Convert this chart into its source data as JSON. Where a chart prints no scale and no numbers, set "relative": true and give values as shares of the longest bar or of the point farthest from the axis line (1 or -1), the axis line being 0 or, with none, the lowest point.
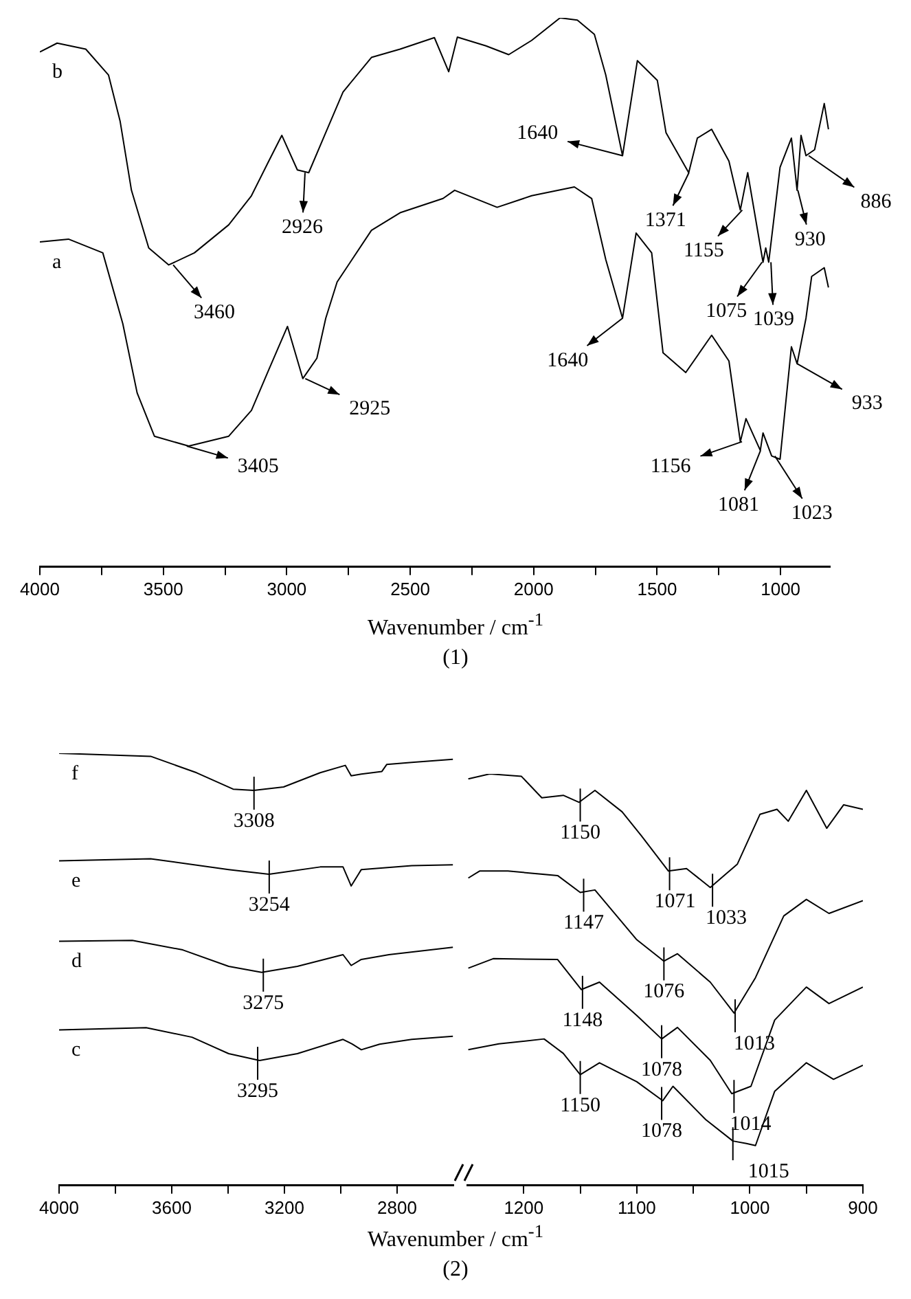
{
  "chart_data": [
    {
      "type": "line",
      "relative": true,
      "xlabel": "Wavenumber / cm$^{-1}$",
      "xlim": [
        4000,
        800
      ],
      "tick_labels": "x",
      "xticks": [
        4000,
        {
          "value": 3750,
          "label": null
        },
        3500,
        {
          "value": 3250,
          "label": null
        },
        3000,
        {
          "value": 2750,
          "label": null
        },
        2500,
        {
          "value": 2250,
          "label": null
        },
        2000,
        {
          "value": 1750,
          "label": null
        },
        1500,
        {
          "value": 1250,
          "label": null
        },
        1000
      ],
      "series": [
        {
          "name": "b",
          "color": "#000000",
          "x": [
            4000,
            3930,
            3814,
            3722,
            3675,
            3629,
            3559,
            3478,
            3374,
            3235,
            3143,
            3073,
            3020,
            2957,
            2911,
            2842,
            2772,
            2657,
            2541,
            2402,
            2344,
            2309,
            2193,
            2101,
            2008,
            1893,
            1823,
            1754,
            1708,
            1640,
            1580,
            1499,
            1464,
            1372,
            1337,
            1279,
            1209,
            1163,
            1133,
            1071,
            1060,
            1048,
            1002,
            956,
            933,
            917,
            897,
            862,
            823,
            806
          ],
          "values": [
            0.938,
            0.954,
            0.943,
            0.896,
            0.812,
            0.686,
            0.581,
            0.55,
            0.572,
            0.623,
            0.676,
            0.739,
            0.786,
            0.723,
            0.718,
            0.791,
            0.865,
            0.928,
            0.943,
            0.964,
            0.902,
            0.965,
            0.949,
            0.933,
            0.959,
            1,
            0.996,
            0.97,
            0.896,
            0.749,
            0.922,
            0.886,
            0.791,
            0.718,
            0.781,
            0.797,
            0.739,
            0.65,
            0.718,
            0.555,
            0.581,
            0.555,
            0.728,
            0.781,
            0.686,
            0.786,
            0.749,
            0.76,
            0.844,
            0.797
          ]
        },
        {
          "name": "a",
          "color": "#000000",
          "x": [
            4000,
            3884,
            3745,
            3664,
            3606,
            3536,
            3397,
            3235,
            3143,
            3073,
            2997,
            2935,
            2878,
            2842,
            2796,
            2657,
            2541,
            2367,
            2320,
            2148,
            2008,
            1835,
            1765,
            1708,
            1640,
            1585,
            1522,
            1476,
            1384,
            1279,
            1209,
            1163,
            1140,
            1082,
            1071,
            1036,
            1002,
            956,
            933,
            897,
            874,
            823,
            806
          ],
          "values": [
            0.592,
            0.597,
            0.572,
            0.443,
            0.317,
            0.238,
            0.22,
            0.238,
            0.285,
            0.359,
            0.438,
            0.343,
            0.38,
            0.453,
            0.519,
            0.613,
            0.645,
            0.671,
            0.686,
            0.655,
            0.676,
            0.692,
            0.671,
            0.56,
            0.453,
            0.608,
            0.572,
            0.39,
            0.354,
            0.422,
            0.375,
            0.228,
            0.27,
            0.212,
            0.244,
            0.202,
            0.196,
            0.401,
            0.37,
            0.453,
            0.529,
            0.545,
            0.509
          ]
        }
      ],
      "annotations": [
        "(1)",
        {
          "text": "3460",
          "x": 3460,
          "y": 0.55
        },
        {
          "text": "2926",
          "x": 2926,
          "y": 0.718
        },
        {
          "text": "1640",
          "x": 1640,
          "y": 0.749
        },
        {
          "text": "1371",
          "x": 1371,
          "y": 0.718
        },
        {
          "text": "1155",
          "x": 1155,
          "y": 0.65
        },
        {
          "text": "1075",
          "x": 1075,
          "y": 0.555
        },
        {
          "text": "1039",
          "x": 1039,
          "y": 0.555
        },
        {
          "text": "930",
          "x": 930,
          "y": 0.686
        },
        {
          "text": "886",
          "x": 886,
          "y": 0.749
        },
        {
          "text": "3405",
          "x": 3405,
          "y": 0.22
        },
        {
          "text": "2925",
          "x": 2925,
          "y": 0.343
        },
        {
          "text": "1640",
          "x": 1640,
          "y": 0.453
        },
        {
          "text": "1156",
          "x": 1156,
          "y": 0.228
        },
        {
          "text": "1081",
          "x": 1081,
          "y": 0.212
        },
        {
          "text": "1023",
          "x": 1023,
          "y": 0.202
        },
        {
          "text": "933",
          "x": 933,
          "y": 0.37
        }
      ]
    },
    {
      "type": "line",
      "relative": true,
      "xlabel": "Wavenumber / cm$^{-1}$",
      "xlim": [
        4000,
        2600
      ],
      "tick_labels": "x",
      "xticks": [
        4000,
        {
          "value": 3800,
          "label": null
        },
        3600,
        {
          "value": 3400,
          "label": null
        },
        3200,
        {
          "value": 3000,
          "label": null
        },
        2800
      ],
      "series": [
        {
          "name": "f",
          "color": "#000000",
          "x": [
            4000,
            3675,
            3512,
            3382,
            3309,
            3203,
            3073,
            2984,
            2963,
            2927,
            2854,
            2837,
            2748,
            2602
          ],
          "values": [
            1,
            0.993,
            0.955,
            0.917,
            0.914,
            0.922,
            0.955,
            0.972,
            0.948,
            0.952,
            0.958,
            0.974,
            0.979,
            0.986
          ]
        },
        {
          "name": "e",
          "color": "#000000",
          "x": [
            4000,
            3675,
            3398,
            3255,
            3073,
            2992,
            2963,
            2927,
            2748,
            2602
          ],
          "values": [
            0.751,
            0.756,
            0.731,
            0.72,
            0.737,
            0.737,
            0.693,
            0.731,
            0.74,
            0.742
          ]
        },
        {
          "name": "d",
          "color": "#000000",
          "x": [
            4000,
            3740,
            3561,
            3398,
            3281,
            3154,
            2992,
            2963,
            2927,
            2829,
            2602
          ],
          "values": [
            0.565,
            0.567,
            0.545,
            0.507,
            0.493,
            0.507,
            0.534,
            0.509,
            0.523,
            0.534,
            0.551
          ]
        },
        {
          "name": "c",
          "color": "#000000",
          "x": [
            4000,
            3691,
            3528,
            3398,
            3288,
            3154,
            2992,
            2959,
            2927,
            2862,
            2748,
            2602
          ],
          "values": [
            0.36,
            0.365,
            0.343,
            0.305,
            0.289,
            0.305,
            0.338,
            0.327,
            0.314,
            0.327,
            0.338,
            0.345
          ]
        }
      ],
      "annotations": [
        "(2)",
        {
          "text": "3308",
          "x": 3308,
          "y": 0.914
        },
        {
          "text": "3254",
          "x": 3254,
          "y": 0.72
        },
        {
          "text": "3275",
          "x": 3275,
          "y": 0.493
        },
        {
          "text": "3295",
          "x": 3295,
          "y": 0.289
        }
      ]
    },
    {
      "type": "line",
      "relative": true,
      "xlim": [
        1250,
        900
      ],
      "tick_labels": "x",
      "xticks": [
        1200,
        {
          "value": 1150,
          "label": null
        },
        1100,
        {
          "value": 1050,
          "label": null
        },
        1000,
        {
          "value": 950,
          "label": null
        },
        900
      ],
      "series": [
        {
          "color": "#000000",
          "x": [
            1249,
            1230,
            1202,
            1184,
            1165,
            1151,
            1137,
            1113,
            1096,
            1072,
            1056,
            1035,
            1011,
            991,
            976,
            966,
            950,
            932,
            917,
            900
          ],
          "values": [
            0.988,
            1.0,
            0.994,
            0.942,
            0.948,
            0.931,
            0.96,
            0.908,
            0.85,
            0.764,
            0.77,
            0.724,
            0.781,
            0.902,
            0.914,
            0.885,
            0.96,
            0.868,
            0.925,
            0.914
          ]
        },
        {
          "color": "#000000",
          "x": [
            1249,
            1239,
            1214,
            1170,
            1150,
            1137,
            1100,
            1076,
            1064,
            1035,
            1014,
            995,
            970,
            950,
            930,
            900
          ],
          "values": [
            0.747,
            0.764,
            0.764,
            0.753,
            0.712,
            0.718,
            0.597,
            0.545,
            0.563,
            0.494,
            0.419,
            0.505,
            0.655,
            0.695,
            0.661,
            0.692
          ]
        },
        {
          "color": "#000000",
          "x": [
            1249,
            1227,
            1170,
            1149,
            1133,
            1100,
            1078,
            1064,
            1035,
            1016,
            999,
            978,
            950,
            930,
            900
          ],
          "values": [
            0.528,
            0.551,
            0.549,
            0.476,
            0.494,
            0.413,
            0.356,
            0.384,
            0.304,
            0.223,
            0.241,
            0.402,
            0.482,
            0.442,
            0.482
          ]
        },
        {
          "color": "#000000",
          "x": [
            1249,
            1222,
            1182,
            1165,
            1150,
            1133,
            1100,
            1077,
            1068,
            1039,
            1015,
            1003,
            995,
            978,
            950,
            926,
            900
          ],
          "values": [
            0.33,
            0.344,
            0.356,
            0.321,
            0.269,
            0.298,
            0.252,
            0.206,
            0.241,
            0.16,
            0.108,
            0.102,
            0.097,
            0.229,
            0.298,
            0.258,
            0.292
          ]
        }
      ],
      "annotations": [
        {
          "text": "1150",
          "x": 1150,
          "y": 0.931
        },
        {
          "text": "1071",
          "x": 1071,
          "y": 0.764
        },
        {
          "text": "1033",
          "x": 1033,
          "y": 0.724
        },
        {
          "text": "1147",
          "x": 1147,
          "y": 0.712
        },
        {
          "text": "1076",
          "x": 1076,
          "y": 0.545
        },
        {
          "text": "1013",
          "x": 1013,
          "y": 0.419
        },
        {
          "text": "1148",
          "x": 1148,
          "y": 0.476
        },
        {
          "text": "1078",
          "x": 1078,
          "y": 0.356
        },
        {
          "text": "1014",
          "x": 1014,
          "y": 0.223
        },
        {
          "text": "1150",
          "x": 1150,
          "y": 0.269
        },
        {
          "text": "1078",
          "x": 1078,
          "y": 0.206
        },
        {
          "text": "1015",
          "x": 1015,
          "y": 0.108
        }
      ]
    }
  ]
}
